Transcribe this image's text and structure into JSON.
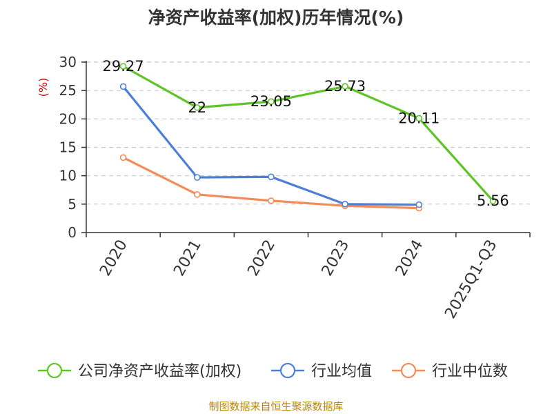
{
  "chart_data": {
    "type": "line",
    "title": "净资产收益率(加权)历年情况(%)",
    "ylabel": "(%)",
    "categories": [
      "2020",
      "2021",
      "2022",
      "2023",
      "2024",
      "2025Q1-Q3"
    ],
    "ylim": [
      0,
      30
    ],
    "yticks": [
      0,
      5,
      10,
      15,
      20,
      25,
      30
    ],
    "grid": true,
    "legend_position": "bottom",
    "series": [
      {
        "name": "公司净资产收益率(加权)",
        "color": "#5ec426",
        "values": [
          29.27,
          22,
          23.05,
          25.73,
          20.11,
          5.56
        ],
        "labels": [
          "29.27",
          "22",
          "23.05",
          "25.73",
          "20.11",
          "5.56"
        ]
      },
      {
        "name": "行业均值",
        "color": "#4e7fd8",
        "values": [
          25.7,
          9.7,
          9.8,
          5.0,
          4.9,
          null
        ]
      },
      {
        "name": "行业中位数",
        "color": "#f28c5a",
        "values": [
          13.2,
          6.7,
          5.6,
          4.7,
          4.3,
          null
        ]
      }
    ]
  },
  "source": "制图数据来自恒生聚源数据库"
}
